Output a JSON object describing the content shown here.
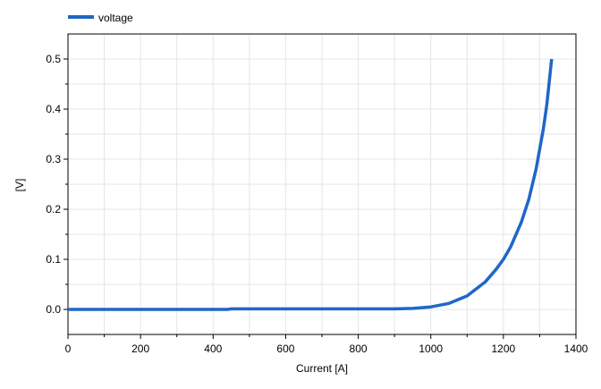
{
  "colors": {
    "series": "#1f66c8",
    "grid": "#e4e4e4",
    "axis": "#000000",
    "background": "#ffffff"
  },
  "chart_data": {
    "type": "line",
    "xlabel": "Current [A]",
    "ylabel": "[V]",
    "xlim": [
      0,
      1400
    ],
    "ylim": [
      -0.05,
      0.55
    ],
    "x_ticks": [
      0,
      200,
      400,
      600,
      800,
      1000,
      1200,
      1400
    ],
    "x_tick_labels": [
      "0",
      "200",
      "400",
      "600",
      "800",
      "1000",
      "1200",
      "1400"
    ],
    "y_ticks": [
      0.0,
      0.1,
      0.2,
      0.3,
      0.4,
      0.5
    ],
    "y_tick_labels": [
      "0.0",
      "0.1",
      "0.2",
      "0.3",
      "0.4",
      "0.5"
    ],
    "grid": true,
    "legend_position": "top-left",
    "series": [
      {
        "name": "voltage",
        "color": "#1f66c8",
        "x": [
          0,
          100,
          200,
          300,
          400,
          440,
          450,
          500,
          600,
          700,
          800,
          900,
          950,
          1000,
          1050,
          1100,
          1150,
          1180,
          1200,
          1220,
          1250,
          1270,
          1290,
          1310,
          1320,
          1333
        ],
        "y": [
          0.0,
          0.0,
          0.0,
          0.0,
          0.0,
          0.0,
          0.001,
          0.001,
          0.001,
          0.001,
          0.001,
          0.001,
          0.002,
          0.005,
          0.012,
          0.027,
          0.055,
          0.08,
          0.1,
          0.125,
          0.175,
          0.22,
          0.28,
          0.36,
          0.41,
          0.5
        ]
      }
    ]
  }
}
